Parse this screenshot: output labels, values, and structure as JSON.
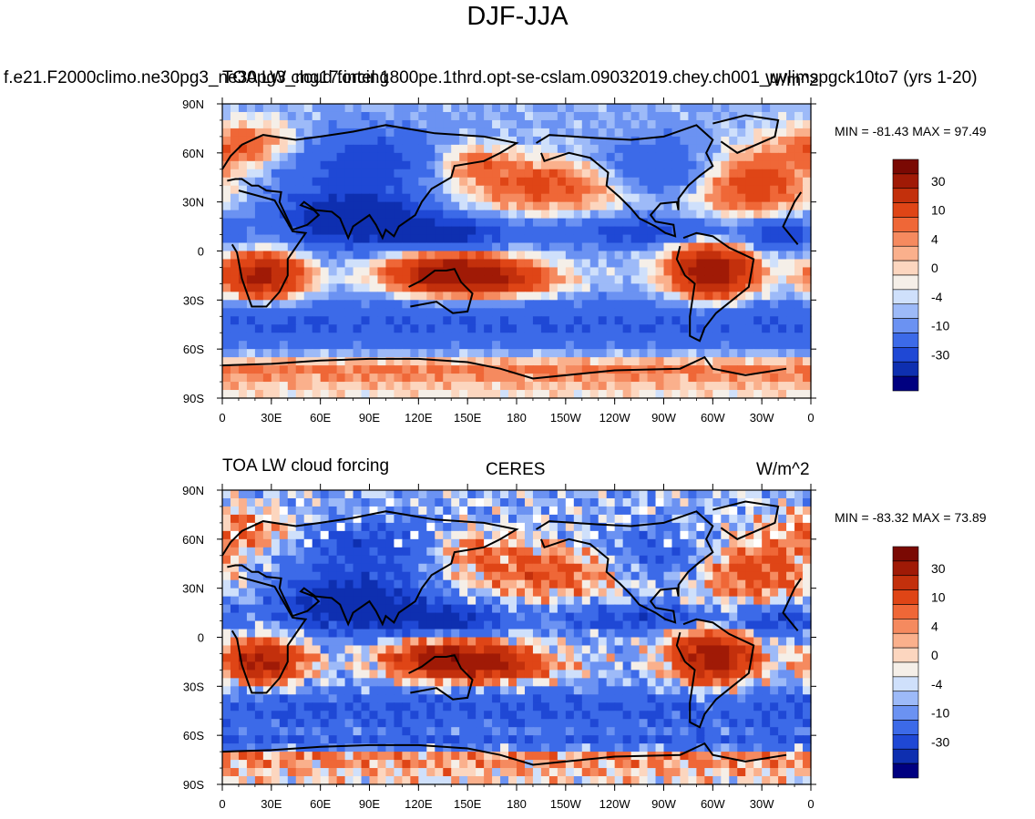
{
  "title": "DJF-JJA",
  "colors": {
    "ramp": [
      "#000080",
      "#0e2fb0",
      "#1f48d5",
      "#3c6ae8",
      "#6b92f2",
      "#9dbaf8",
      "#cfe0fb",
      "#f5efe8",
      "#fcd6bf",
      "#fab08c",
      "#f58a5f",
      "#ef6737",
      "#df4516",
      "#c3300c",
      "#a01a06",
      "#7a0903"
    ],
    "land": "#000000",
    "missing": "#ffffff"
  },
  "colorbar_labels": [
    "30",
    "10",
    "4",
    "0",
    "-4",
    "-10",
    "-30"
  ],
  "lat_labels": [
    "90N",
    "60N",
    "30N",
    "0",
    "30S",
    "60S",
    "90S"
  ],
  "lon_labels": [
    "0",
    "30E",
    "60E",
    "90E",
    "120E",
    "150E",
    "180",
    "150W",
    "120W",
    "90W",
    "60W",
    "30W",
    "0"
  ],
  "panels": [
    {
      "name": "model",
      "case_string": "f.e21.F2000climo.ne30pg3_ne30pg3_mg17.intel.1800pe.1thrd.opt-se-cslam.09032019.chey.ch001_uvlimspgck10to7 (yrs 1-20)",
      "field_string": "TOA LW cloud forcing",
      "units": "W/m^2",
      "stats": "MIN = -81.43 MAX =  97.49"
    },
    {
      "name": "obs",
      "case_string": "CERES",
      "field_string": "TOA LW cloud forcing",
      "units": "W/m^2",
      "stats": "MIN = -83.32 MAX =  73.89"
    }
  ]
}
